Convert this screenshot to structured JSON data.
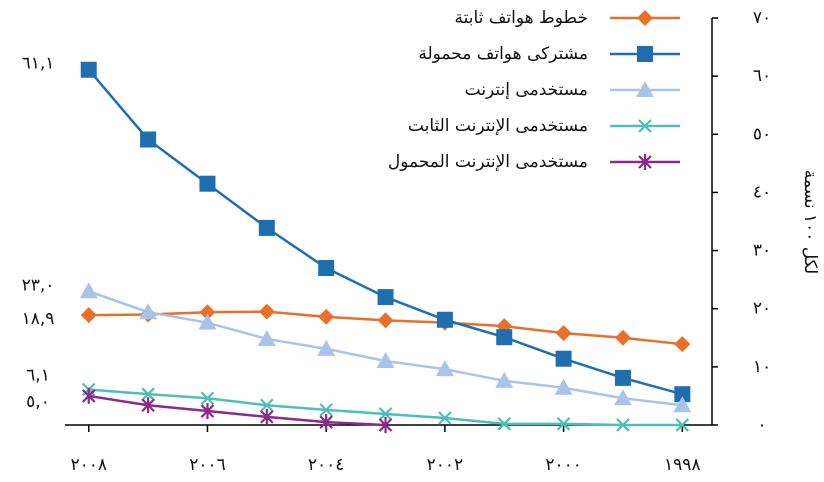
{
  "chart_data": {
    "type": "line",
    "y_label": "لكل ١٠٠ نسمة",
    "x": [
      1998,
      1999,
      2000,
      2001,
      2002,
      2003,
      2004,
      2005,
      2006,
      2007,
      2008
    ],
    "xlim": [
      2008.4,
      1997.5
    ],
    "xticks": [
      {
        "value": 2008,
        "label": "٢٠٠٨"
      },
      {
        "value": 2006,
        "label": "٢٠٠٦"
      },
      {
        "value": 2004,
        "label": "٢٠٠٤"
      },
      {
        "value": 2002,
        "label": "٢٠٠٢"
      },
      {
        "value": 2000,
        "label": "٢٠٠٠"
      },
      {
        "value": 1998,
        "label": "١٩٩٨"
      }
    ],
    "ylim": [
      0,
      70
    ],
    "yticks": [
      {
        "value": 0,
        "label": "٠"
      },
      {
        "value": 10,
        "label": "١٠"
      },
      {
        "value": 20,
        "label": "٢٠"
      },
      {
        "value": 30,
        "label": "٣٠"
      },
      {
        "value": 40,
        "label": "٤٠"
      },
      {
        "value": 50,
        "label": "٥٠"
      },
      {
        "value": 60,
        "label": "٦٠"
      },
      {
        "value": 70,
        "label": "٧٠"
      }
    ],
    "series": [
      {
        "name": "خطوط هواتف ثابتة",
        "color": "#e8702a",
        "marker": "diamond",
        "values": [
          13.9,
          15,
          15.8,
          17,
          17.6,
          18,
          18.6,
          19.5,
          19.4,
          19,
          18.9
        ],
        "value_labels": [
          null,
          null,
          null,
          null,
          null,
          null,
          null,
          null,
          null,
          null,
          "١٨,٩"
        ]
      },
      {
        "name": "مشتركى هواتف محمولة",
        "color": "#1f6fb0",
        "marker": "square",
        "values": [
          5.3,
          8.1,
          11.4,
          15.1,
          18.1,
          22.0,
          27.0,
          33.9,
          41.5,
          49.1,
          61.1
        ],
        "value_labels": [
          null,
          null,
          null,
          null,
          null,
          null,
          null,
          null,
          null,
          null,
          "٦١,١"
        ]
      },
      {
        "name": "مستخدمى إنترنت",
        "color": "#a9c4e8",
        "marker": "triangle",
        "values": [
          3.4,
          4.6,
          6.4,
          7.6,
          9.6,
          11.0,
          13.1,
          14.8,
          17.6,
          19.4,
          23.0
        ],
        "value_labels": [
          null,
          null,
          null,
          null,
          null,
          null,
          null,
          null,
          null,
          null,
          "٢٣,٠"
        ]
      },
      {
        "name": "مستخدمى الإنترنت الثابت",
        "color": "#4dbfb8",
        "marker": "x",
        "values": [
          0,
          0,
          0.2,
          0.2,
          1.2,
          1.9,
          2.6,
          3.4,
          4.6,
          5.3,
          6.1
        ],
        "value_labels": [
          null,
          null,
          null,
          null,
          null,
          null,
          null,
          null,
          null,
          null,
          "٦,١"
        ]
      },
      {
        "name": "مستخدمى الإنترنت المحمول",
        "color": "#8b2a8b",
        "marker": "star",
        "values": [
          null,
          null,
          null,
          null,
          null,
          0,
          0.5,
          1.4,
          2.4,
          3.4,
          5.0
        ],
        "value_labels": [
          null,
          null,
          null,
          null,
          null,
          null,
          null,
          null,
          null,
          null,
          "٥,٠"
        ]
      }
    ]
  }
}
